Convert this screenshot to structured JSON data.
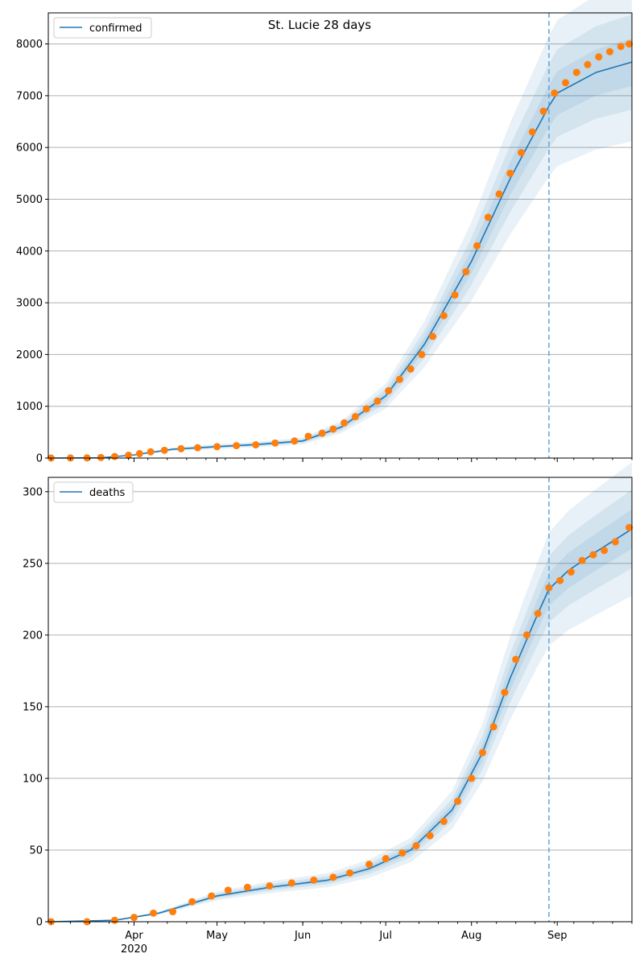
{
  "colors": {
    "model_line": "#1f77b4",
    "band": "#1f77b4",
    "observed": "#ff7f0e",
    "grid": "#b0b0b0",
    "forecast_marker": "#5fa2d7"
  },
  "chart_data": [
    {
      "type": "line",
      "title": "St. Lucie 28 days",
      "xlabel": "",
      "ylabel": "",
      "legend": {
        "label": "confirmed",
        "placement": "top-left"
      },
      "ylim": [
        0,
        8600
      ],
      "yticks": [
        0,
        1000,
        2000,
        3000,
        4000,
        5000,
        6000,
        7000,
        8000
      ],
      "grid": "horizontal",
      "forecast_start": "2020-08-29",
      "observed_points": [
        [
          "2020-03-02",
          0
        ],
        [
          "2020-03-09",
          1
        ],
        [
          "2020-03-15",
          3
        ],
        [
          "2020-03-20",
          10
        ],
        [
          "2020-03-25",
          30
        ],
        [
          "2020-03-30",
          55
        ],
        [
          "2020-04-03",
          85
        ],
        [
          "2020-04-07",
          120
        ],
        [
          "2020-04-12",
          150
        ],
        [
          "2020-04-18",
          180
        ],
        [
          "2020-04-24",
          200
        ],
        [
          "2020-05-01",
          220
        ],
        [
          "2020-05-08",
          240
        ],
        [
          "2020-05-15",
          255
        ],
        [
          "2020-05-22",
          290
        ],
        [
          "2020-05-29",
          330
        ],
        [
          "2020-06-03",
          420
        ],
        [
          "2020-06-08",
          480
        ],
        [
          "2020-06-12",
          560
        ],
        [
          "2020-06-16",
          680
        ],
        [
          "2020-06-20",
          800
        ],
        [
          "2020-06-24",
          950
        ],
        [
          "2020-06-28",
          1100
        ],
        [
          "2020-07-02",
          1300
        ],
        [
          "2020-07-06",
          1520
        ],
        [
          "2020-07-10",
          1720
        ],
        [
          "2020-07-14",
          2000
        ],
        [
          "2020-07-18",
          2350
        ],
        [
          "2020-07-22",
          2750
        ],
        [
          "2020-07-26",
          3150
        ],
        [
          "2020-07-30",
          3600
        ],
        [
          "2020-08-03",
          4100
        ],
        [
          "2020-08-07",
          4650
        ],
        [
          "2020-08-11",
          5100
        ],
        [
          "2020-08-15",
          5500
        ],
        [
          "2020-08-19",
          5900
        ],
        [
          "2020-08-23",
          6300
        ],
        [
          "2020-08-27",
          6700
        ],
        [
          "2020-08-31",
          7050
        ],
        [
          "2020-09-04",
          7250
        ],
        [
          "2020-09-08",
          7450
        ],
        [
          "2020-09-12",
          7600
        ],
        [
          "2020-09-16",
          7750
        ],
        [
          "2020-09-20",
          7850
        ],
        [
          "2020-09-24",
          7950
        ],
        [
          "2020-09-27",
          8000
        ]
      ],
      "model_line": [
        [
          "2020-03-01",
          0
        ],
        [
          "2020-03-20",
          5
        ],
        [
          "2020-04-01",
          60
        ],
        [
          "2020-04-15",
          170
        ],
        [
          "2020-05-01",
          220
        ],
        [
          "2020-05-15",
          260
        ],
        [
          "2020-06-01",
          330
        ],
        [
          "2020-06-15",
          600
        ],
        [
          "2020-07-01",
          1200
        ],
        [
          "2020-07-15",
          2200
        ],
        [
          "2020-08-01",
          3800
        ],
        [
          "2020-08-15",
          5400
        ],
        [
          "2020-08-29",
          6800
        ],
        [
          "2020-09-01",
          7050
        ],
        [
          "2020-09-15",
          7450
        ],
        [
          "2020-09-28",
          7650
        ]
      ],
      "band_halfwidth_fraction": [
        0.06,
        0.12,
        0.2
      ]
    },
    {
      "type": "line",
      "title": "",
      "xlabel": "",
      "ylabel": "",
      "legend": {
        "label": "deaths",
        "placement": "top-left"
      },
      "ylim": [
        0,
        310
      ],
      "yticks": [
        0,
        50,
        100,
        150,
        200,
        250,
        300
      ],
      "grid": "horizontal",
      "forecast_start": "2020-08-29",
      "xticks": [
        "Apr",
        "May",
        "Jun",
        "Jul",
        "Aug",
        "Sep"
      ],
      "xtick_year": "2020",
      "observed_points": [
        [
          "2020-03-02",
          0
        ],
        [
          "2020-03-15",
          0
        ],
        [
          "2020-03-25",
          1
        ],
        [
          "2020-04-01",
          3
        ],
        [
          "2020-04-08",
          6
        ],
        [
          "2020-04-15",
          7
        ],
        [
          "2020-04-22",
          14
        ],
        [
          "2020-04-29",
          18
        ],
        [
          "2020-05-05",
          22
        ],
        [
          "2020-05-12",
          24
        ],
        [
          "2020-05-20",
          25
        ],
        [
          "2020-05-28",
          27
        ],
        [
          "2020-06-05",
          29
        ],
        [
          "2020-06-12",
          31
        ],
        [
          "2020-06-18",
          34
        ],
        [
          "2020-06-25",
          40
        ],
        [
          "2020-07-01",
          44
        ],
        [
          "2020-07-07",
          48
        ],
        [
          "2020-07-12",
          53
        ],
        [
          "2020-07-17",
          60
        ],
        [
          "2020-07-22",
          70
        ],
        [
          "2020-07-27",
          84
        ],
        [
          "2020-08-01",
          100
        ],
        [
          "2020-08-05",
          118
        ],
        [
          "2020-08-09",
          136
        ],
        [
          "2020-08-13",
          160
        ],
        [
          "2020-08-17",
          183
        ],
        [
          "2020-08-21",
          200
        ],
        [
          "2020-08-25",
          215
        ],
        [
          "2020-08-29",
          233
        ],
        [
          "2020-09-02",
          238
        ],
        [
          "2020-09-06",
          244
        ],
        [
          "2020-09-10",
          252
        ],
        [
          "2020-09-14",
          256
        ],
        [
          "2020-09-18",
          259
        ],
        [
          "2020-09-22",
          265
        ],
        [
          "2020-09-27",
          275
        ]
      ],
      "model_line": [
        [
          "2020-03-01",
          0
        ],
        [
          "2020-03-25",
          1
        ],
        [
          "2020-04-10",
          6
        ],
        [
          "2020-05-01",
          18
        ],
        [
          "2020-05-20",
          24
        ],
        [
          "2020-06-10",
          29
        ],
        [
          "2020-06-25",
          37
        ],
        [
          "2020-07-10",
          50
        ],
        [
          "2020-07-25",
          78
        ],
        [
          "2020-08-05",
          118
        ],
        [
          "2020-08-15",
          170
        ],
        [
          "2020-08-25",
          215
        ],
        [
          "2020-08-29",
          232
        ],
        [
          "2020-09-05",
          245
        ],
        [
          "2020-09-15",
          258
        ],
        [
          "2020-09-28",
          274
        ]
      ],
      "band_halfwidth_fraction": [
        0.05,
        0.1,
        0.17
      ]
    }
  ]
}
